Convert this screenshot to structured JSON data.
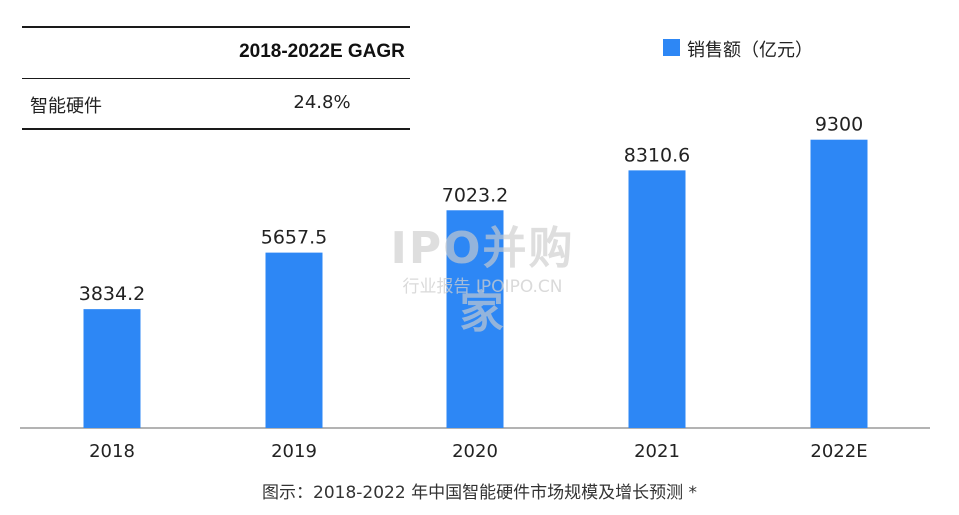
{
  "table": {
    "header": "2018-2022E GAGR",
    "row_label": "智能硬件",
    "row_value": "24.8%"
  },
  "legend": {
    "label": "销售额（亿元）",
    "color": "#2d87f5"
  },
  "watermark": {
    "main": "IPO并购家",
    "sub": "行业报告 IPOIPO.CN"
  },
  "caption": "图示：2018-2022 年中国智能硬件市场规模及增长预测 *",
  "chart_data": {
    "type": "bar",
    "categories": [
      "2018",
      "2019",
      "2020",
      "2021",
      "2022E"
    ],
    "series": [
      {
        "name": "销售额（亿元）",
        "values": [
          3834.2,
          5657.5,
          7023.2,
          8310.6,
          9300
        ],
        "color": "#2d87f5"
      }
    ],
    "data_labels": [
      "3834.2",
      "5657.5",
      "7023.2",
      "8310.6",
      "9300"
    ],
    "ylim": [
      0,
      12000
    ],
    "grid": false,
    "legend_position": "top-right"
  }
}
